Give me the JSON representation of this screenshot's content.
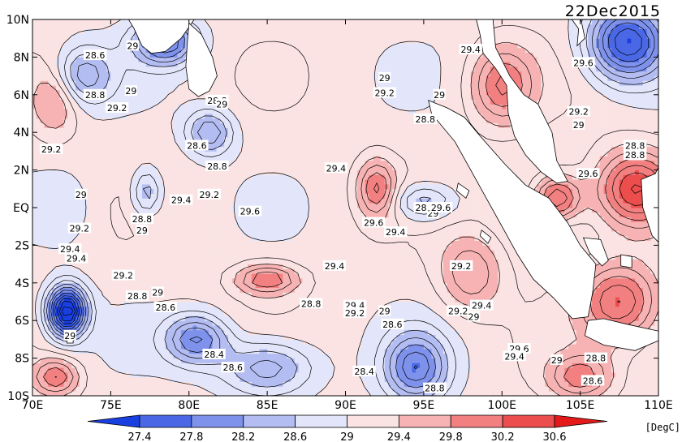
{
  "map": {
    "date": "22Dec2015",
    "units": "[DegC]",
    "x_ticks": [
      "70E",
      "75E",
      "80E",
      "85E",
      "90E",
      "95E",
      "100E",
      "105E",
      "110E"
    ],
    "y_ticks": [
      "10N",
      "8N",
      "6N",
      "4N",
      "2N",
      "EQ",
      "2S",
      "4S",
      "6S",
      "8S",
      "10S"
    ],
    "lon_range": [
      70,
      110
    ],
    "lat_range": [
      -10,
      10
    ]
  },
  "colorbar": {
    "levels": [
      "27.4",
      "27.8",
      "28.2",
      "28.6",
      "29",
      "29.4",
      "29.8",
      "30.2",
      "30.6"
    ],
    "colors": [
      "#1a3fe0",
      "#4a68e6",
      "#7e92ec",
      "#b3bdf2",
      "#e3e6fa",
      "#fbe3e3",
      "#f7b3b3",
      "#f28080",
      "#ec4d4d",
      "#e41a1a"
    ]
  },
  "contour_labels": [
    {
      "text": "28.6",
      "lon": 74.0,
      "lat": 8.1
    },
    {
      "text": "29",
      "lon": 76.4,
      "lat": 8.6
    },
    {
      "text": "28.8",
      "lon": 74.0,
      "lat": 6.0
    },
    {
      "text": "29",
      "lon": 76.3,
      "lat": 6.2
    },
    {
      "text": "29.2",
      "lon": 75.4,
      "lat": 5.3
    },
    {
      "text": "28.8",
      "lon": 81.8,
      "lat": 5.7
    },
    {
      "text": "29",
      "lon": 82.1,
      "lat": 5.5
    },
    {
      "text": "28.6",
      "lon": 80.5,
      "lat": 3.3
    },
    {
      "text": "28.8",
      "lon": 81.8,
      "lat": 2.2
    },
    {
      "text": "29.2",
      "lon": 71.2,
      "lat": 3.1
    },
    {
      "text": "29",
      "lon": 73.1,
      "lat": 0.7
    },
    {
      "text": "29.4",
      "lon": 79.5,
      "lat": 0.4
    },
    {
      "text": "29.2",
      "lon": 81.3,
      "lat": 0.7
    },
    {
      "text": "29.6",
      "lon": 83.9,
      "lat": -0.2
    },
    {
      "text": "28.8",
      "lon": 77.0,
      "lat": -0.6
    },
    {
      "text": "29",
      "lon": 77.0,
      "lat": -1.2
    },
    {
      "text": "29.2",
      "lon": 73.0,
      "lat": -1.1
    },
    {
      "text": "29.4",
      "lon": 72.4,
      "lat": -2.2
    },
    {
      "text": "29.4",
      "lon": 72.8,
      "lat": -2.7
    },
    {
      "text": "29.2",
      "lon": 75.8,
      "lat": -3.6
    },
    {
      "text": "28.8",
      "lon": 76.7,
      "lat": -4.7
    },
    {
      "text": "29",
      "lon": 78.0,
      "lat": -4.5
    },
    {
      "text": "28.6",
      "lon": 78.5,
      "lat": -5.3
    },
    {
      "text": "29.4",
      "lon": 89.4,
      "lat": 2.1
    },
    {
      "text": "29.4",
      "lon": 89.3,
      "lat": -3.1
    },
    {
      "text": "29.6",
      "lon": 91.8,
      "lat": -0.8
    },
    {
      "text": "29.4",
      "lon": 93.2,
      "lat": -1.3
    },
    {
      "text": "28.8",
      "lon": 95.1,
      "lat": 4.7
    },
    {
      "text": "29",
      "lon": 92.5,
      "lat": 6.9
    },
    {
      "text": "29.2",
      "lon": 92.5,
      "lat": 6.1
    },
    {
      "text": "29",
      "lon": 96.0,
      "lat": 6.0
    },
    {
      "text": "29.4",
      "lon": 98.0,
      "lat": 8.4
    },
    {
      "text": "29.6",
      "lon": 105.2,
      "lat": 7.7
    },
    {
      "text": "29.2",
      "lon": 104.9,
      "lat": 5.1
    },
    {
      "text": "29",
      "lon": 104.9,
      "lat": 4.4
    },
    {
      "text": "28.8",
      "lon": 108.5,
      "lat": 3.3
    },
    {
      "text": "28.8",
      "lon": 108.5,
      "lat": 2.8
    },
    {
      "text": "29.6",
      "lon": 105.5,
      "lat": 1.8
    },
    {
      "text": "28.8",
      "lon": 95.1,
      "lat": 0.0
    },
    {
      "text": "29",
      "lon": 95.6,
      "lat": -0.3
    },
    {
      "text": "29.6",
      "lon": 96.1,
      "lat": 0.0
    },
    {
      "text": "29.2",
      "lon": 97.4,
      "lat": -3.1
    },
    {
      "text": "29.4",
      "lon": 90.6,
      "lat": -5.2
    },
    {
      "text": "29.2",
      "lon": 90.6,
      "lat": -5.6
    },
    {
      "text": "29",
      "lon": 92.5,
      "lat": -5.5
    },
    {
      "text": "28.8",
      "lon": 87.8,
      "lat": -5.1
    },
    {
      "text": "28.6",
      "lon": 93.0,
      "lat": -6.2
    },
    {
      "text": "29.2",
      "lon": 97.2,
      "lat": -5.5
    },
    {
      "text": "29.4",
      "lon": 98.7,
      "lat": -5.2
    },
    {
      "text": "29",
      "lon": 98.2,
      "lat": -5.8
    },
    {
      "text": "28.4",
      "lon": 81.6,
      "lat": -7.8
    },
    {
      "text": "28.6",
      "lon": 82.8,
      "lat": -8.5
    },
    {
      "text": "28.4",
      "lon": 91.2,
      "lat": -8.7
    },
    {
      "text": "28.8",
      "lon": 95.7,
      "lat": -9.6
    },
    {
      "text": "29.6",
      "lon": 101.1,
      "lat": -7.5
    },
    {
      "text": "29.4",
      "lon": 100.8,
      "lat": -7.9
    },
    {
      "text": "29",
      "lon": 103.5,
      "lat": -8.1
    },
    {
      "text": "28.8",
      "lon": 106.0,
      "lat": -8.0
    },
    {
      "text": "28.6",
      "lon": 105.8,
      "lat": -9.2
    },
    {
      "text": "29",
      "lon": 72.4,
      "lat": -6.8
    }
  ],
  "chart_data": {
    "type": "heatmap",
    "title": "22Dec2015",
    "units": "[DegC]",
    "x_ticks": [
      "70E",
      "75E",
      "80E",
      "85E",
      "90E",
      "95E",
      "100E",
      "105E",
      "110E"
    ],
    "y_ticks": [
      "10N",
      "8N",
      "6N",
      "4N",
      "2N",
      "EQ",
      "2S",
      "4S",
      "6S",
      "8S",
      "10S"
    ],
    "xlim": [
      70,
      110
    ],
    "ylim": [
      -10,
      10
    ],
    "colorbar_levels": [
      27.4,
      27.8,
      28.2,
      28.6,
      29,
      29.4,
      29.8,
      30.2,
      30.6
    ],
    "features": [
      {
        "lon": 72.2,
        "lat": -5.5,
        "value": 26.8,
        "sx": 1.2,
        "sy": 1.3
      },
      {
        "lon": 73.0,
        "lat": 7.0,
        "value": 28.2,
        "sx": 2.0,
        "sy": 1.5
      },
      {
        "lon": 78.5,
        "lat": 8.8,
        "value": 27.8,
        "sx": 2.0,
        "sy": 1.2
      },
      {
        "lon": 81.3,
        "lat": 4.0,
        "value": 28.2,
        "sx": 1.5,
        "sy": 1.2
      },
      {
        "lon": 77.3,
        "lat": 0.8,
        "value": 28.4,
        "sx": 1.0,
        "sy": 1.3
      },
      {
        "lon": 85.0,
        "lat": -8.5,
        "value": 28.2,
        "sx": 3.0,
        "sy": 1.5
      },
      {
        "lon": 80.5,
        "lat": -7.0,
        "value": 28.0,
        "sx": 2.0,
        "sy": 1.3
      },
      {
        "lon": 94.5,
        "lat": -8.5,
        "value": 27.9,
        "sx": 2.0,
        "sy": 1.8
      },
      {
        "lon": 95.0,
        "lat": 0.3,
        "value": 28.4,
        "sx": 2.0,
        "sy": 1.0
      },
      {
        "lon": 108.0,
        "lat": 8.8,
        "value": 27.4,
        "sx": 2.5,
        "sy": 2.0
      },
      {
        "lon": 92.0,
        "lat": 1.0,
        "value": 30.0,
        "sx": 1.2,
        "sy": 1.5
      },
      {
        "lon": 103.5,
        "lat": 0.5,
        "value": 30.3,
        "sx": 1.5,
        "sy": 1.2
      },
      {
        "lon": 108.5,
        "lat": 1.0,
        "value": 30.4,
        "sx": 2.5,
        "sy": 2.0
      },
      {
        "lon": 107.5,
        "lat": -5.0,
        "value": 30.2,
        "sx": 2.5,
        "sy": 2.0
      },
      {
        "lon": 71.5,
        "lat": 6.0,
        "value": 29.8,
        "sx": 1.5,
        "sy": 2.0
      },
      {
        "lon": 85.0,
        "lat": -3.8,
        "value": 30.0,
        "sx": 2.0,
        "sy": 0.8
      },
      {
        "lon": 100.0,
        "lat": 6.5,
        "value": 30.0,
        "sx": 2.0,
        "sy": 2.0
      },
      {
        "lon": 71.5,
        "lat": -9.0,
        "value": 30.0,
        "sx": 1.5,
        "sy": 1.0
      },
      {
        "lon": 105.0,
        "lat": -9.0,
        "value": 29.9,
        "sx": 2.0,
        "sy": 1.2
      },
      {
        "lon": 98.0,
        "lat": -3.5,
        "value": 29.8,
        "sx": 2.0,
        "sy": 2.0
      },
      {
        "lon": 72.0,
        "lat": 0.0,
        "value": 28.8,
        "sx": 2.0,
        "sy": 2.0
      }
    ]
  }
}
